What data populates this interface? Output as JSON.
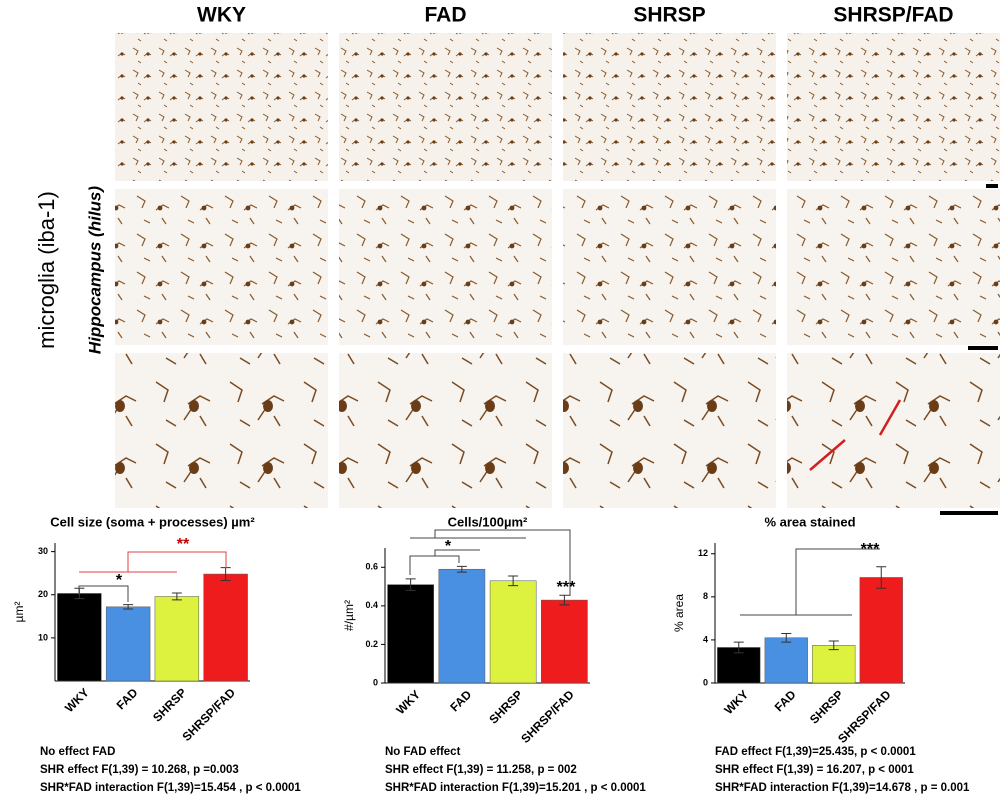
{
  "figure": {
    "columns": [
      "WKY",
      "FAD",
      "SHRSP",
      "SHRSP/FAD"
    ],
    "row_label": "microglia (iba-1)",
    "region_label": "Hippocampus (hilus)"
  },
  "chart_data": [
    {
      "type": "bar",
      "title": "Cell size (soma + processes)  µm²",
      "y_label": "µm²",
      "categories": [
        "WKY",
        "FAD",
        "SHRSP",
        "SHRSP/FAD"
      ],
      "values": [
        20.3,
        17.2,
        19.6,
        24.8
      ],
      "errors": [
        1.2,
        0.5,
        0.8,
        1.5
      ],
      "colors": [
        "#000000",
        "#4a90e2",
        "#ddf23f",
        "#ee1c1c"
      ],
      "ylim": [
        0,
        32
      ],
      "yticks": [
        10,
        20,
        30
      ],
      "annotations": [
        {
          "text": "*",
          "color": "#000000"
        },
        {
          "text": "**",
          "color": "#c00000"
        }
      ],
      "notes": [
        "No effect FAD",
        "SHR effect F(1,39) = 10.268, p =0.003",
        "SHR*FAD interaction F(1,39)=15.454 , p < 0.0001"
      ]
    },
    {
      "type": "bar",
      "title": "Cells/100µm²",
      "y_label": "#/µm²",
      "categories": [
        "WKY",
        "FAD",
        "SHRSP",
        "SHRSP/FAD"
      ],
      "values": [
        0.51,
        0.59,
        0.53,
        0.43
      ],
      "errors": [
        0.03,
        0.015,
        0.025,
        0.025
      ],
      "colors": [
        "#000000",
        "#4a90e2",
        "#ddf23f",
        "#ee1c1c"
      ],
      "ylim": [
        0,
        0.7
      ],
      "yticks": [
        0,
        0.2,
        0.4,
        0.6
      ],
      "annotations": [
        {
          "text": "*",
          "color": "#000000"
        },
        {
          "text": "***",
          "color": "#000000"
        }
      ],
      "notes": [
        "No FAD effect",
        "SHR effect F(1,39) = 11.258, p = 002",
        "SHR*FAD interaction F(1,39)=15.201 , p < 0.0001"
      ]
    },
    {
      "type": "bar",
      "title": "% area stained",
      "y_label": "% area",
      "categories": [
        "WKY",
        "FAD",
        "SHRSP",
        "SHRSP/FAD"
      ],
      "values": [
        3.3,
        4.2,
        3.5,
        9.8
      ],
      "errors": [
        0.5,
        0.4,
        0.4,
        1.0
      ],
      "colors": [
        "#000000",
        "#4a90e2",
        "#ddf23f",
        "#ee1c1c"
      ],
      "ylim": [
        0,
        13
      ],
      "yticks": [
        0,
        4,
        8,
        12
      ],
      "annotations": [
        {
          "text": "***",
          "color": "#000000"
        }
      ],
      "notes": [
        "FAD effect F(1,39)=25.435, p < 0.0001",
        "SHR effect F(1,39) = 16.207, p < 0001",
        "SHR*FAD interaction F(1,39)=14.678 , p = 0.001"
      ]
    }
  ]
}
